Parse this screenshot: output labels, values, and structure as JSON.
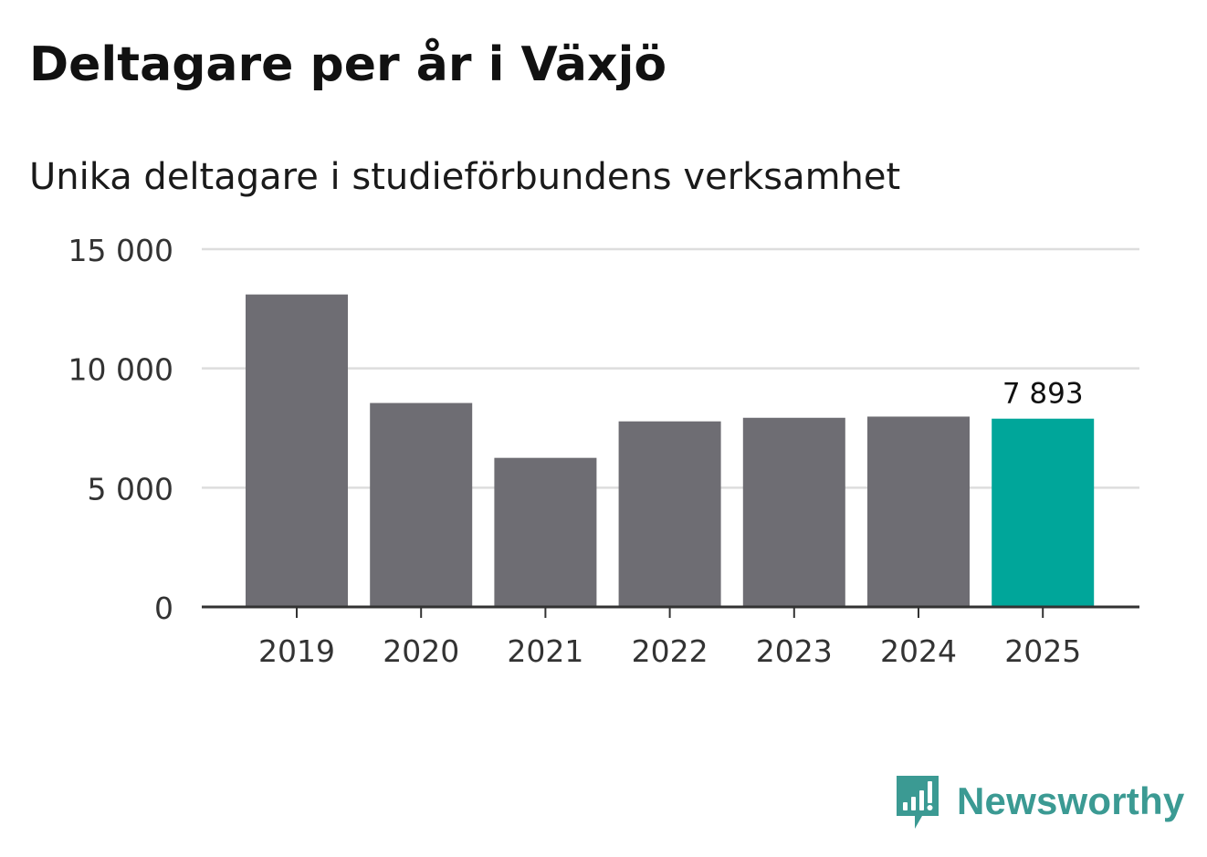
{
  "chart_data": {
    "type": "bar",
    "title": "Deltagare per år i Växjö",
    "subtitle": "Unika deltagare i studieförbundens verksamhet",
    "categories": [
      "2019",
      "2020",
      "2021",
      "2022",
      "2023",
      "2024",
      "2025"
    ],
    "values": [
      13100,
      8550,
      6250,
      7780,
      7930,
      7980,
      7893
    ],
    "highlight_index": 6,
    "highlight_label": "7 893",
    "yticks": [
      "0",
      "5 000",
      "10 000",
      "15 000"
    ],
    "ytick_values": [
      0,
      5000,
      10000,
      15000
    ],
    "ylim": [
      0,
      15000
    ],
    "grid": true,
    "xlabel": "",
    "ylabel": "",
    "colors": {
      "bar": "#6e6d73",
      "highlight": "#00a69a",
      "grid": "#dddddd",
      "axis": "#333333"
    }
  },
  "brand": {
    "name": "Newsworthy",
    "icon": "newsworthy-logo-icon",
    "color": "#3b9a93"
  }
}
